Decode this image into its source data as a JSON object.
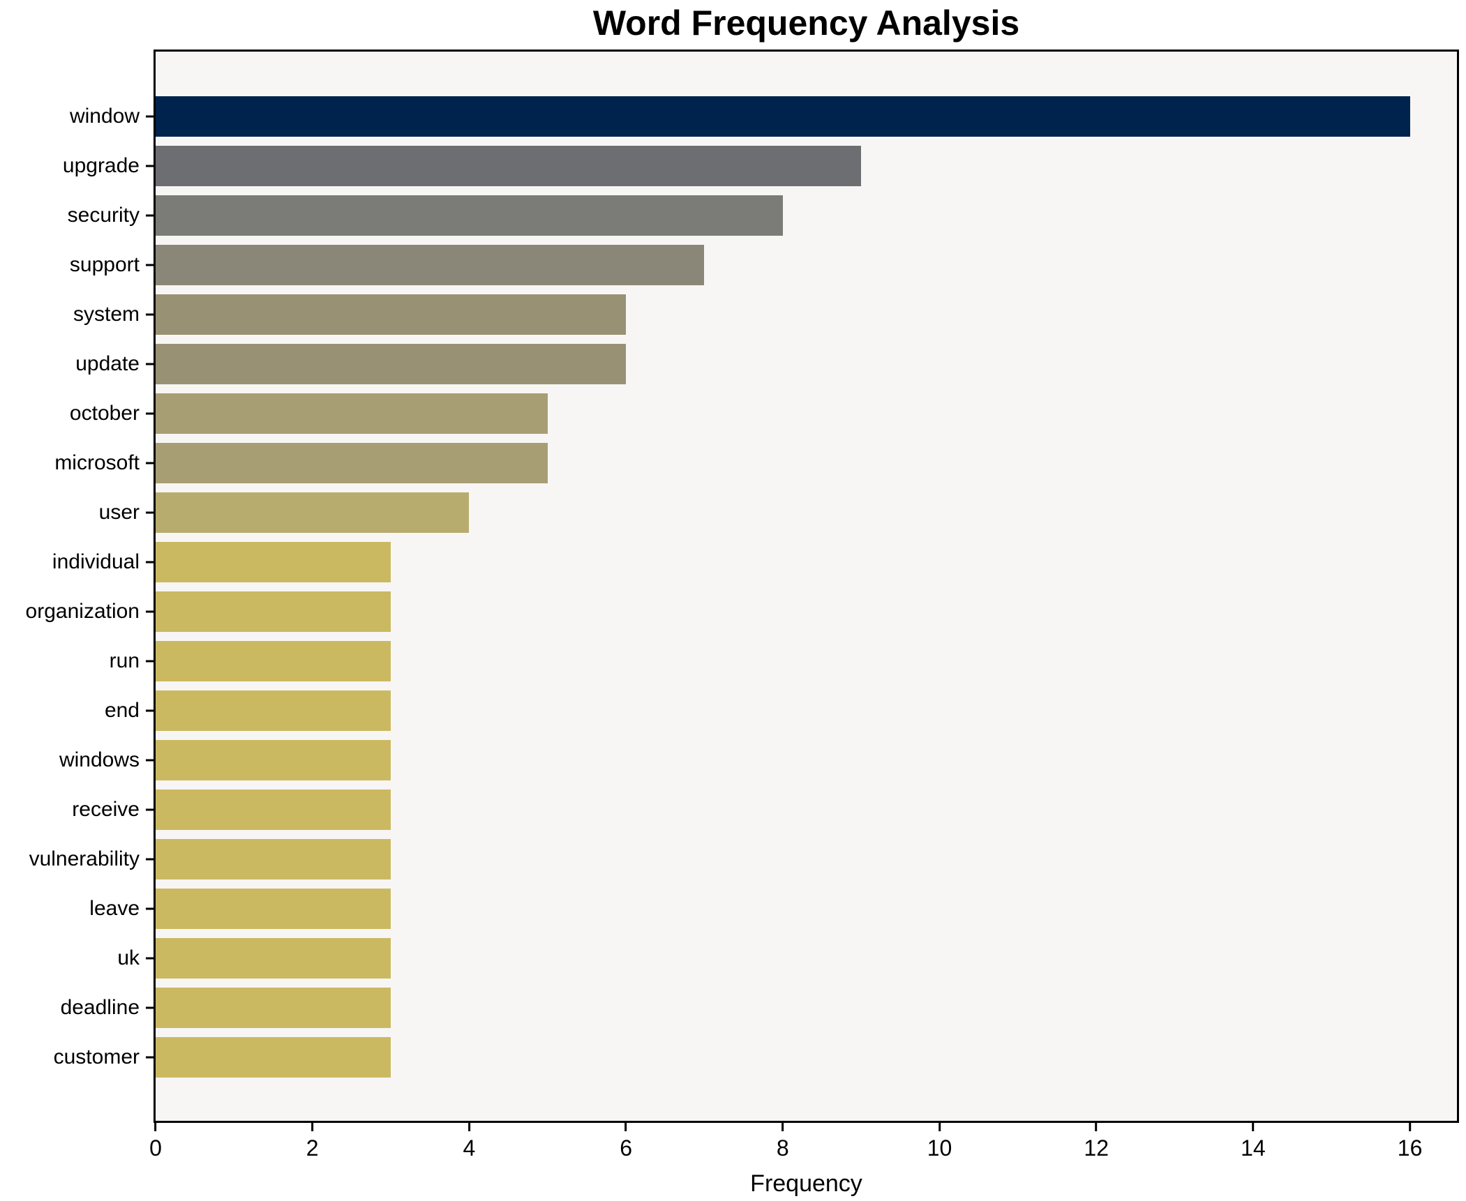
{
  "chart_data": {
    "type": "bar",
    "orientation": "horizontal",
    "title": "Word Frequency Analysis",
    "xlabel": "Frequency",
    "ylabel": "",
    "categories": [
      "window",
      "upgrade",
      "security",
      "support",
      "system",
      "update",
      "october",
      "microsoft",
      "user",
      "individual",
      "organization",
      "run",
      "end",
      "windows",
      "receive",
      "vulnerability",
      "leave",
      "uk",
      "deadline",
      "customer"
    ],
    "values": [
      16,
      9,
      8,
      7,
      6,
      6,
      5,
      5,
      4,
      3,
      3,
      3,
      3,
      3,
      3,
      3,
      3,
      3,
      3,
      3
    ],
    "bar_colors": [
      "#00234e",
      "#6c6e72",
      "#7b7b77",
      "#8a8778",
      "#999173",
      "#999173",
      "#a89e74",
      "#a89e74",
      "#b7ac6d",
      "#cbb962",
      "#cbb962",
      "#cbb962",
      "#cbb962",
      "#cbb962",
      "#cbb962",
      "#cbb962",
      "#cbb962",
      "#cbb962",
      "#cbb962",
      "#cbb962"
    ],
    "xticks": [
      0,
      2,
      4,
      6,
      8,
      10,
      12,
      14,
      16
    ],
    "xlim": [
      0,
      16.6
    ],
    "grid": "off",
    "legend": "none",
    "plot_background": "#f7f6f5",
    "figure_background": "#ffffff",
    "axis_color": "#000000"
  }
}
